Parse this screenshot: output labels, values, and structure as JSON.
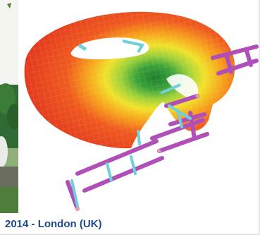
{
  "caption": {
    "label": "2014 - London (UK)"
  },
  "images": {
    "main": "fea-stress-model-donut",
    "left": "photo-park-crop"
  },
  "colors": {
    "caption_text": "#1e4a8c",
    "stress_high": "#e8331f",
    "stress_mid": "#f7d21c",
    "stress_low": "#2c8f2a",
    "beam_magenta": "#b04fb8",
    "beam_cyan": "#6fd0d8"
  }
}
